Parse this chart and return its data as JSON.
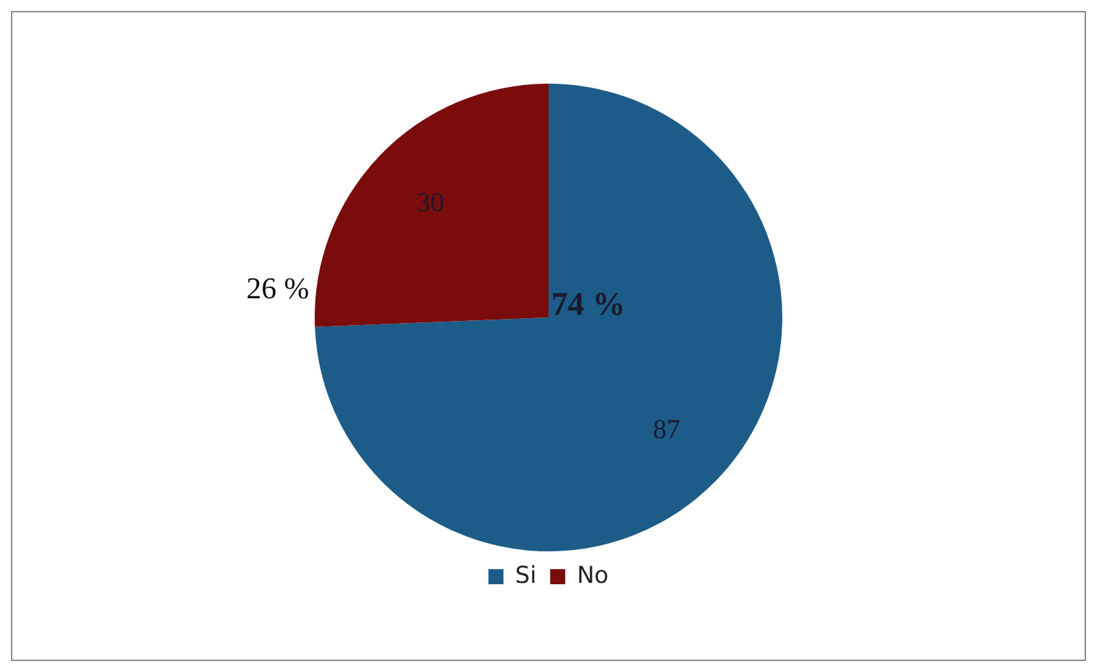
{
  "chart_data": {
    "type": "pie",
    "categories": [
      "Si",
      "No"
    ],
    "values": [
      87,
      30
    ],
    "colors": [
      "#1d5c88",
      "#7b0c0c"
    ],
    "data_labels": true,
    "legend": "bottom",
    "annotations": [
      {
        "text": "74 %",
        "x": "Si"
      },
      {
        "text": "26 %",
        "x": "No"
      }
    ]
  }
}
